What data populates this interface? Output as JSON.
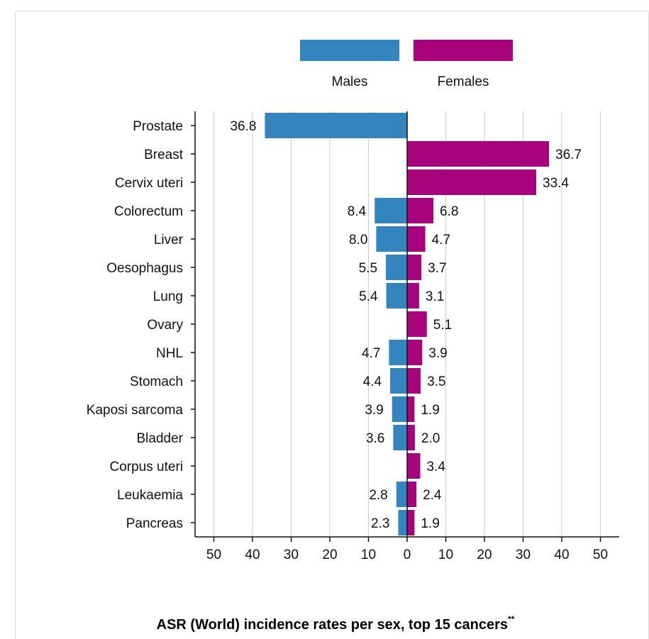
{
  "colors": {
    "males": "#3484bd",
    "females": "#a8037c",
    "grid": "#cccccc",
    "axis": "#111111"
  },
  "chart_data": {
    "type": "bar",
    "orientation": "horizontal-population-pyramid",
    "title": "ASR (World) incidence rates per sex, top 15 cancers",
    "title_sup": "**",
    "legend_placement": "top-center",
    "grid": true,
    "xlim": [
      -50,
      50
    ],
    "x_ticks": [
      -50,
      -40,
      -30,
      -20,
      -10,
      0,
      10,
      20,
      30,
      40,
      50
    ],
    "x_tick_labels": [
      "50",
      "40",
      "30",
      "20",
      "10",
      "0",
      "10",
      "20",
      "30",
      "40",
      "50"
    ],
    "categories": [
      "Prostate",
      "Breast",
      "Cervix uteri",
      "Colorectum",
      "Liver",
      "Oesophagus",
      "Lung",
      "Ovary",
      "NHL",
      "Stomach",
      "Kaposi sarcoma",
      "Bladder",
      "Corpus uteri",
      "Leukaemia",
      "Pancreas"
    ],
    "series": [
      {
        "name": "Males",
        "side": "left",
        "values": [
          36.8,
          null,
          null,
          8.4,
          8.0,
          5.5,
          5.4,
          null,
          4.7,
          4.4,
          3.9,
          3.6,
          null,
          2.8,
          2.3
        ],
        "labels": [
          "36.8",
          "",
          "",
          "8.4",
          "8.0",
          "5.5",
          "5.4",
          "",
          "4.7",
          "4.4",
          "3.9",
          "3.6",
          "",
          "2.8",
          "2.3"
        ]
      },
      {
        "name": "Females",
        "side": "right",
        "values": [
          null,
          36.7,
          33.4,
          6.8,
          4.7,
          3.7,
          3.1,
          5.1,
          3.9,
          3.5,
          1.9,
          2.0,
          3.4,
          2.4,
          1.9
        ],
        "labels": [
          "",
          "36.7",
          "33.4",
          "6.8",
          "4.7",
          "3.7",
          "3.1",
          "5.1",
          "3.9",
          "3.5",
          "1.9",
          "2.0",
          "3.4",
          "2.4",
          "1.9"
        ]
      }
    ]
  }
}
